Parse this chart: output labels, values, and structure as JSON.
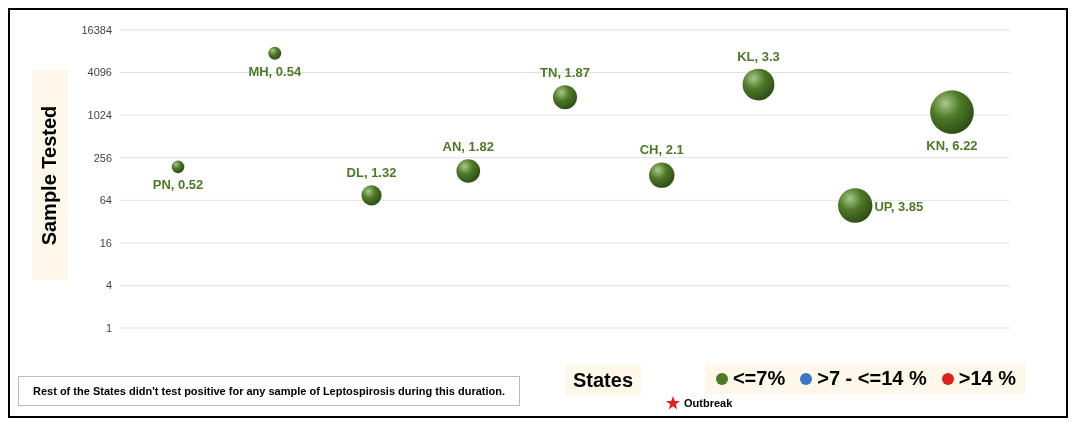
{
  "chart_data": {
    "type": "bubble",
    "xlabel": "States",
    "ylabel": "Sample Tested",
    "categories": [
      null,
      null,
      null,
      null,
      null,
      null,
      null,
      null,
      null
    ],
    "series": [
      {
        "name": "<=7%",
        "color": "#4e7a27",
        "values": [
          190,
          7700,
          75,
          166,
          1830,
          145,
          2770,
          54,
          1130
        ],
        "sizes": [
          0.52,
          0.54,
          1.32,
          1.82,
          1.87,
          2.1,
          3.3,
          3.85,
          6.22
        ],
        "value_labels": [
          "PN, 0.52",
          "MH, 0.54",
          "DL, 1.32",
          "AN, 1.82",
          "TN, 1.87",
          "CH, 2.1",
          "KL, 3.3",
          "UP, 3.85",
          "KN, 6.22"
        ]
      },
      {
        "name": ">7 - <=14 %",
        "color": "#3a78c2",
        "values": [
          null,
          null,
          null,
          null,
          null,
          null,
          null,
          null,
          null
        ]
      },
      {
        "name": ">14 %",
        "color": "#e0201b",
        "values": [
          null,
          null,
          null,
          null,
          null,
          null,
          null,
          null,
          null
        ]
      },
      {
        "name": "Outbreak",
        "color": "#e0201b",
        "marker": "star",
        "values": [
          null,
          null,
          null,
          null,
          null,
          null,
          null,
          null,
          null
        ]
      }
    ],
    "log": "y",
    "ylim": [
      1,
      16384
    ],
    "yticks": [
      1,
      4,
      16,
      64,
      256,
      1024,
      4096,
      16384
    ],
    "grid": "y",
    "tick_labels": "y",
    "legend": "bottom right",
    "annotations": [
      "Rest of the States didn't test positive for any sample of Leptospirosis during this duration."
    ]
  }
}
